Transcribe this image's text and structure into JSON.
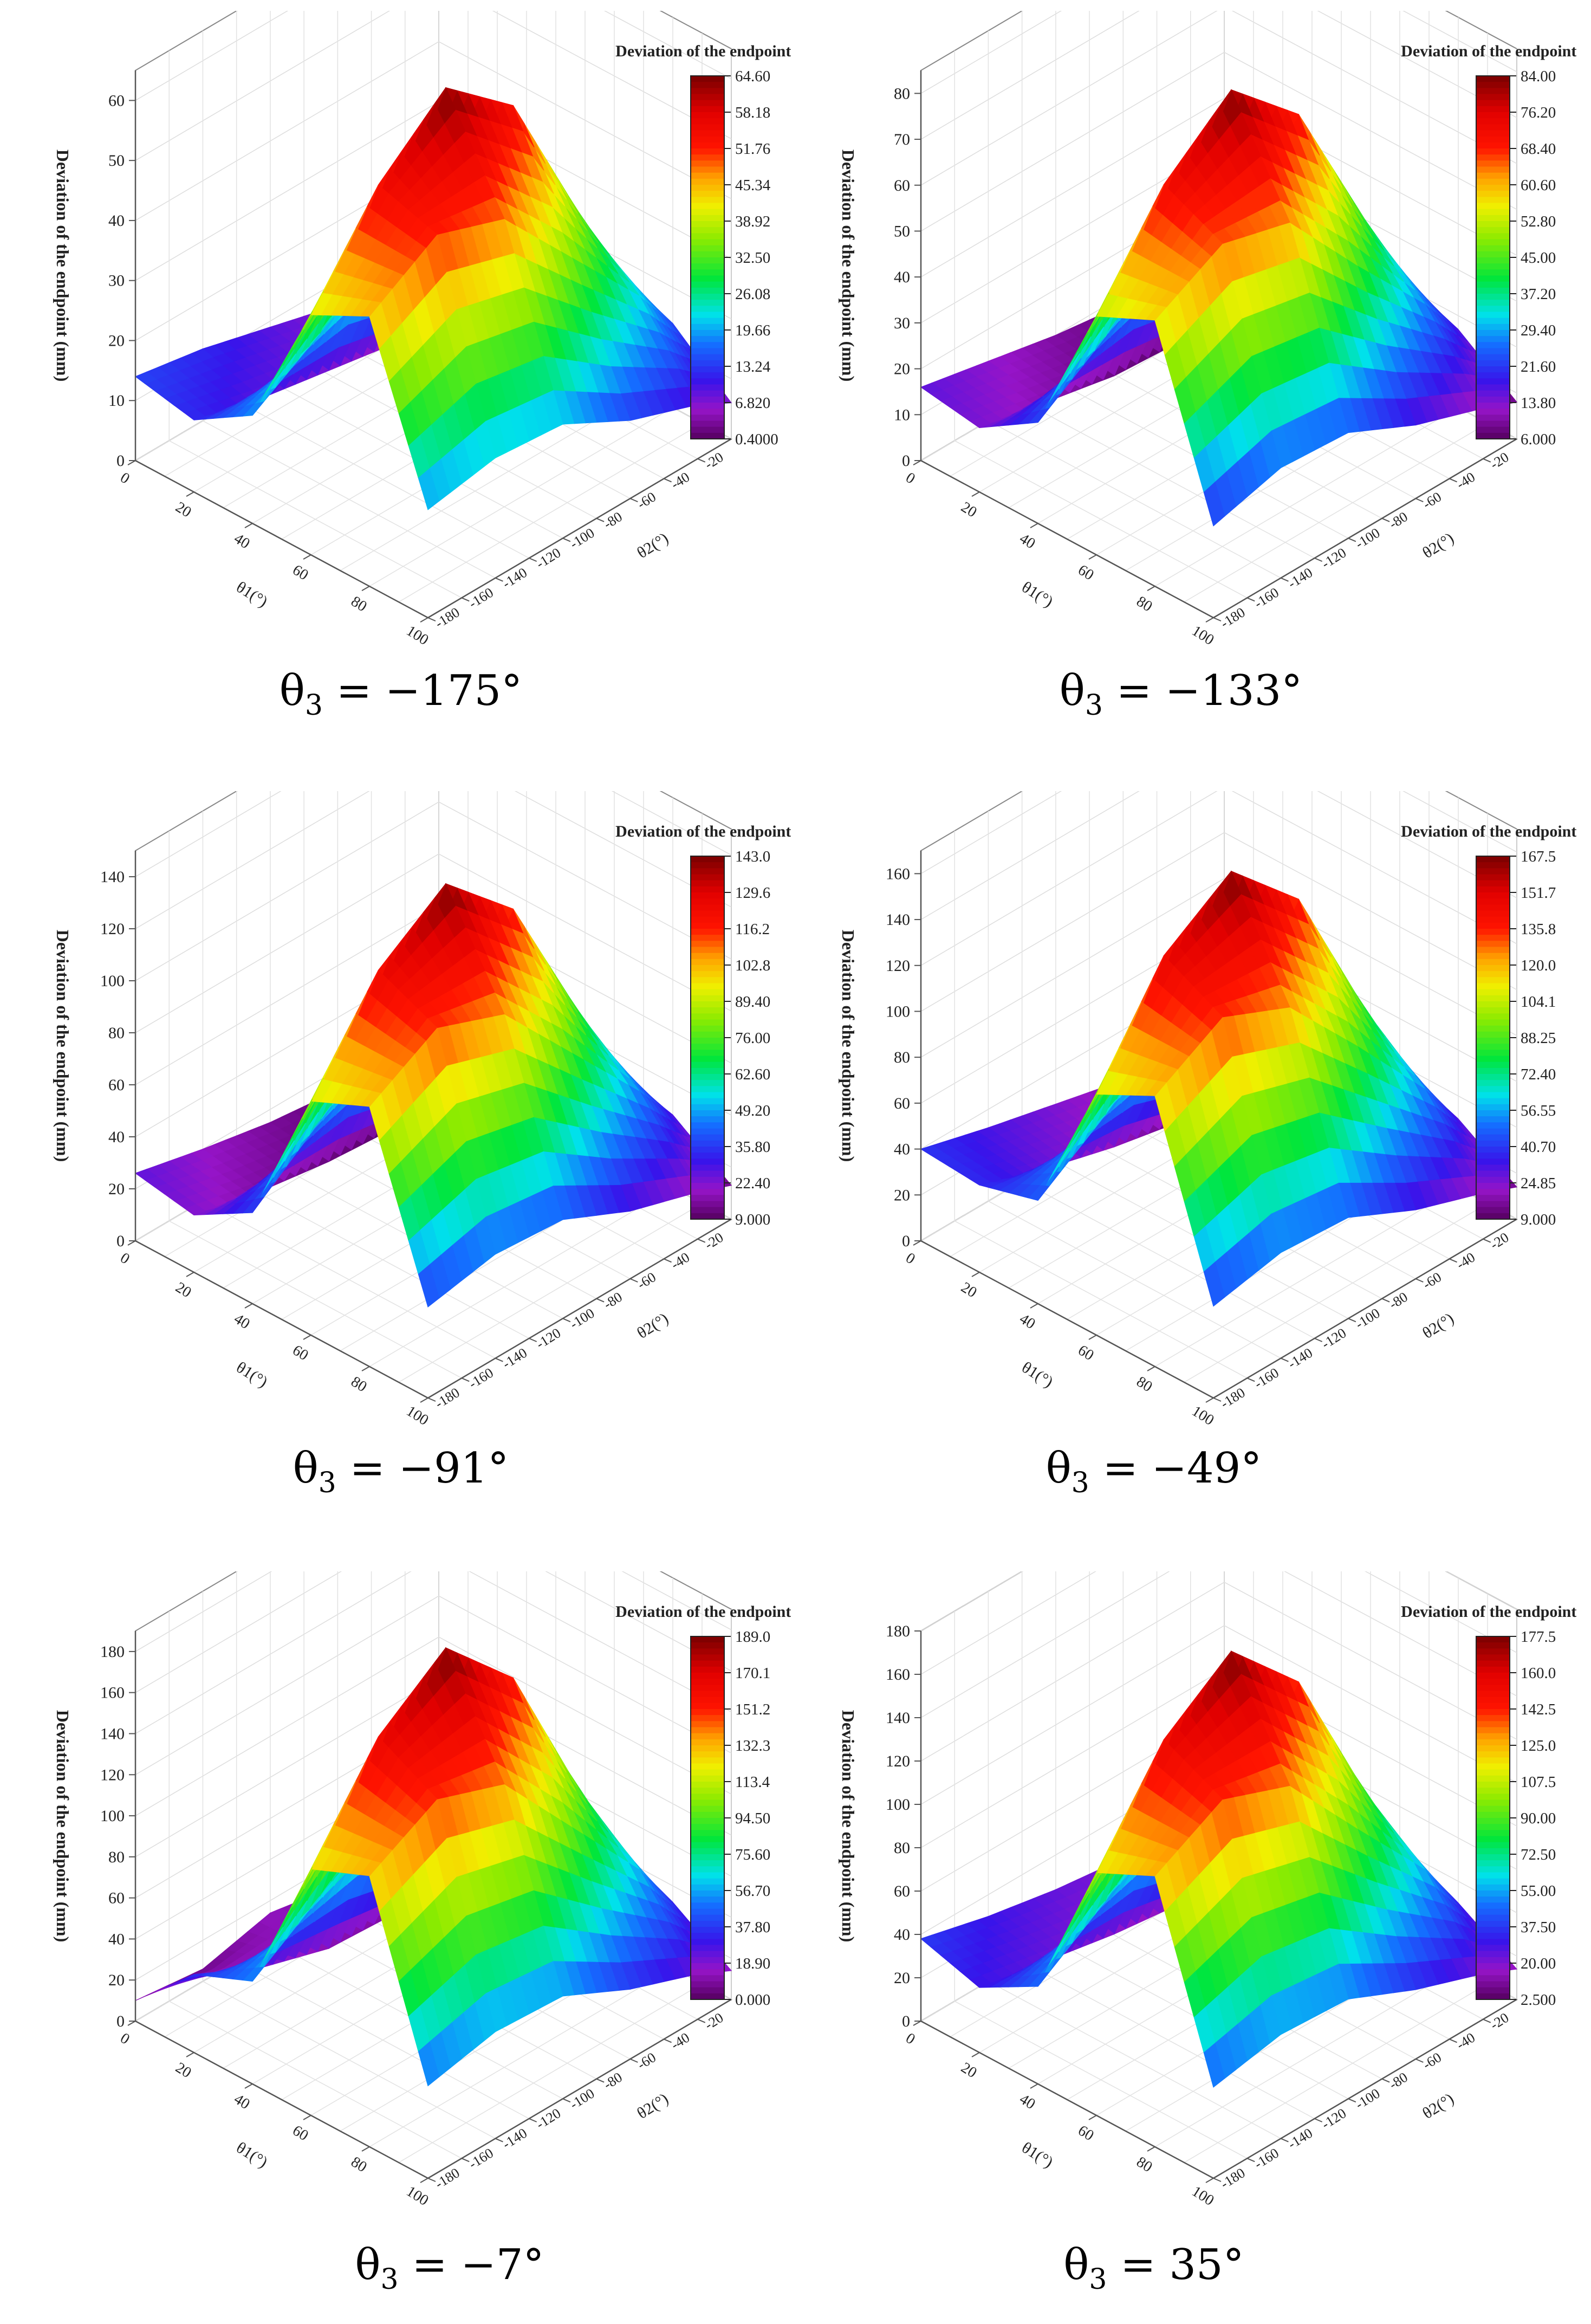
{
  "chart_data": [
    {
      "type": "surface3d",
      "caption": {
        "symbol": "θ",
        "sub": "3",
        "rest": " = −175°"
      },
      "zlabel": "Deviation of the endpoint (mm)",
      "xlabel": "θ1(°)",
      "ylabel": "θ2(°)",
      "colorbar_title": "Deviation of the endpoint (mm)",
      "colorbar_ticks": [
        "64.60",
        "58.18",
        "51.76",
        "45.34",
        "38.92",
        "32.50",
        "26.08",
        "19.66",
        "13.24",
        "6.820",
        "0.4000"
      ],
      "x_ticks": [
        "0",
        "20",
        "40",
        "60",
        "80",
        "100"
      ],
      "y_ticks": [
        "-20",
        "-40",
        "-60",
        "-80",
        "-100",
        "-120",
        "-140",
        "-160",
        "-180"
      ],
      "z_ticks": [
        "0",
        "10",
        "20",
        "30",
        "40",
        "50",
        "60"
      ],
      "xlim": [
        0,
        100
      ],
      "ylim": [
        -180,
        0
      ],
      "zlim": [
        0,
        65
      ],
      "x": [
        0,
        20,
        40,
        60,
        80,
        100
      ],
      "y": [
        -180,
        -140,
        -100,
        -60,
        -20,
        0
      ],
      "z": [
        [
          14,
          12,
          18,
          40,
          45,
          18
        ],
        [
          12,
          9,
          25,
          55,
          52,
          20
        ],
        [
          9,
          7,
          35,
          64.6,
          48,
          19
        ],
        [
          6,
          5,
          30,
          55,
          35,
          13
        ],
        [
          3,
          2,
          18,
          30,
          22,
          9
        ],
        [
          1,
          0.4,
          8,
          18,
          14,
          6
        ]
      ]
    },
    {
      "type": "surface3d",
      "caption": {
        "symbol": "θ",
        "sub": "3",
        "rest": " = −133°"
      },
      "zlabel": "Deviation of the endpoint (mm)",
      "xlabel": "θ1(°)",
      "ylabel": "θ2(°)",
      "colorbar_title": "Deviation of the endpoint (mm)",
      "colorbar_ticks": [
        "84.00",
        "76.20",
        "68.40",
        "60.60",
        "52.80",
        "45.00",
        "37.20",
        "29.40",
        "21.60",
        "13.80",
        "6.000"
      ],
      "x_ticks": [
        "0",
        "20",
        "40",
        "60",
        "80",
        "100"
      ],
      "y_ticks": [
        "-20",
        "-40",
        "-60",
        "-80",
        "-100",
        "-120",
        "-140",
        "-160",
        "-180"
      ],
      "z_ticks": [
        "0",
        "10",
        "20",
        "30",
        "40",
        "50",
        "60",
        "70",
        "80"
      ],
      "xlim": [
        0,
        100
      ],
      "ylim": [
        -180,
        0
      ],
      "zlim": [
        0,
        85
      ],
      "x": [
        0,
        20,
        40,
        60,
        80,
        100
      ],
      "y": [
        -180,
        -140,
        -100,
        -60,
        -20,
        0
      ],
      "z": [
        [
          16,
          14,
          22,
          52,
          58,
          20
        ],
        [
          13,
          11,
          32,
          72,
          66,
          24
        ],
        [
          10,
          8,
          45,
          84,
          62,
          23
        ],
        [
          8,
          7,
          38,
          70,
          44,
          16
        ],
        [
          7,
          6,
          22,
          38,
          27,
          11
        ],
        [
          6,
          6,
          10,
          22,
          17,
          8
        ]
      ]
    },
    {
      "type": "surface3d",
      "caption": {
        "symbol": "θ",
        "sub": "3",
        "rest": " = −91°"
      },
      "zlabel": "Deviation of the endpoint (mm)",
      "xlabel": "θ1(°)",
      "ylabel": "θ2(°)",
      "colorbar_title": "Deviation of the endpoint (mm)",
      "colorbar_ticks": [
        "143.0",
        "129.6",
        "116.2",
        "102.8",
        "89.40",
        "76.00",
        "62.60",
        "49.20",
        "35.80",
        "22.40",
        "9.000"
      ],
      "x_ticks": [
        "0",
        "20",
        "40",
        "60",
        "80",
        "100"
      ],
      "y_ticks": [
        "-20",
        "-40",
        "-60",
        "-80",
        "-100",
        "-120",
        "-140",
        "-160",
        "-180"
      ],
      "z_ticks": [
        "0",
        "20",
        "40",
        "60",
        "80",
        "100",
        "120",
        "140"
      ],
      "xlim": [
        0,
        100
      ],
      "ylim": [
        -180,
        0
      ],
      "zlim": [
        0,
        150
      ],
      "x": [
        0,
        20,
        40,
        60,
        80,
        100
      ],
      "y": [
        -180,
        -140,
        -100,
        -60,
        -20,
        0
      ],
      "z": [
        [
          26,
          22,
          35,
          90,
          100,
          35
        ],
        [
          20,
          16,
          55,
          125,
          115,
          40
        ],
        [
          15,
          12,
          75,
          143,
          105,
          38
        ],
        [
          12,
          10,
          60,
          118,
          75,
          26
        ],
        [
          10,
          9,
          35,
          62,
          45,
          18
        ],
        [
          9,
          9,
          16,
          34,
          28,
          13
        ]
      ]
    },
    {
      "type": "surface3d",
      "caption": {
        "symbol": "θ",
        "sub": "3",
        "rest": " = −49°"
      },
      "zlabel": "Deviation of the endpoint (mm)",
      "xlabel": "θ1(°)",
      "ylabel": "θ2(°)",
      "colorbar_title": "Deviation of the endpoint (mm)",
      "colorbar_ticks": [
        "167.5",
        "151.7",
        "135.8",
        "120.0",
        "104.1",
        "88.25",
        "72.40",
        "56.55",
        "40.70",
        "24.85",
        "9.000"
      ],
      "x_ticks": [
        "0",
        "20",
        "40",
        "60",
        "80",
        "100"
      ],
      "y_ticks": [
        "-20",
        "-40",
        "-60",
        "-80",
        "-100",
        "-120",
        "-140",
        "-160",
        "-180"
      ],
      "z_ticks": [
        "0",
        "20",
        "40",
        "60",
        "80",
        "100",
        "120",
        "140",
        "160"
      ],
      "xlim": [
        0,
        100
      ],
      "ylim": [
        -180,
        0
      ],
      "zlim": [
        0,
        170
      ],
      "x": [
        0,
        20,
        40,
        60,
        80,
        100
      ],
      "y": [
        -180,
        -140,
        -100,
        -60,
        -20,
        0
      ],
      "z": [
        [
          40,
          38,
          45,
          105,
          118,
          40
        ],
        [
          32,
          28,
          65,
          148,
          135,
          46
        ],
        [
          25,
          20,
          88,
          167.5,
          122,
          44
        ],
        [
          18,
          14,
          70,
          138,
          88,
          30
        ],
        [
          12,
          10,
          40,
          72,
          52,
          20
        ],
        [
          9,
          9,
          18,
          38,
          30,
          14
        ]
      ]
    },
    {
      "type": "surface3d",
      "caption": {
        "symbol": "θ",
        "sub": "3",
        "rest": " = −7°"
      },
      "zlabel": "Deviation of the endpoint (mm)",
      "xlabel": "θ1(°)",
      "ylabel": "θ2(°)",
      "colorbar_title": "Deviation of the endpoint (mm)",
      "colorbar_ticks": [
        "189.0",
        "170.1",
        "151.2",
        "132.3",
        "113.4",
        "94.50",
        "75.60",
        "56.70",
        "37.80",
        "18.90",
        "0.000"
      ],
      "x_ticks": [
        "0",
        "20",
        "40",
        "60",
        "80",
        "100"
      ],
      "y_ticks": [
        "-20",
        "-40",
        "-60",
        "-80",
        "-100",
        "-120",
        "-140",
        "-160",
        "-180"
      ],
      "z_ticks": [
        "0",
        "20",
        "40",
        "60",
        "80",
        "100",
        "120",
        "140",
        "160",
        "180"
      ],
      "xlim": [
        0,
        100
      ],
      "ylim": [
        -180,
        0
      ],
      "zlim": [
        0,
        190
      ],
      "x": [
        0,
        20,
        40,
        60,
        80,
        100
      ],
      "y": [
        -180,
        -140,
        -100,
        -60,
        -20,
        0
      ],
      "z": [
        [
          10,
          38,
          50,
          120,
          132,
          45
        ],
        [
          6,
          22,
          72,
          165,
          150,
          52
        ],
        [
          14,
          12,
          98,
          189,
          138,
          50
        ],
        [
          8,
          10,
          78,
          155,
          98,
          34
        ],
        [
          4,
          6,
          44,
          80,
          58,
          22
        ],
        [
          0,
          3,
          18,
          40,
          32,
          14
        ]
      ]
    },
    {
      "type": "surface3d",
      "caption": {
        "symbol": "θ",
        "sub": "3",
        "rest": " = 35°"
      },
      "zlabel": "Deviation of the endpoint (mm)",
      "xlabel": "θ1(°)",
      "ylabel": "θ2(°)",
      "colorbar_title": "Deviation of the endpoint (mm)",
      "colorbar_ticks": [
        "177.5",
        "160.0",
        "142.5",
        "125.0",
        "107.5",
        "90.00",
        "72.50",
        "55.00",
        "37.50",
        "20.00",
        "2.500"
      ],
      "x_ticks": [
        "0",
        "20",
        "40",
        "60",
        "80",
        "100"
      ],
      "y_ticks": [
        "-20",
        "-40",
        "-60",
        "-80",
        "-100",
        "-120",
        "-140",
        "-160",
        "-180"
      ],
      "z_ticks": [
        "0",
        "20",
        "40",
        "60",
        "80",
        "100",
        "120",
        "140",
        "160",
        "180"
      ],
      "xlim": [
        0,
        100
      ],
      "ylim": [
        -180,
        0
      ],
      "zlim": [
        0,
        180
      ],
      "x": [
        0,
        20,
        40,
        60,
        80,
        100
      ],
      "y": [
        -180,
        -140,
        -100,
        -60,
        -20,
        0
      ],
      "z": [
        [
          38,
          30,
          45,
          112,
          125,
          42
        ],
        [
          30,
          24,
          66,
          155,
          142,
          48
        ],
        [
          24,
          18,
          92,
          177.5,
          130,
          46
        ],
        [
          20,
          14,
          74,
          145,
          92,
          32
        ],
        [
          16,
          10,
          42,
          75,
          55,
          21
        ],
        [
          12,
          8,
          18,
          38,
          30,
          14
        ]
      ]
    }
  ]
}
